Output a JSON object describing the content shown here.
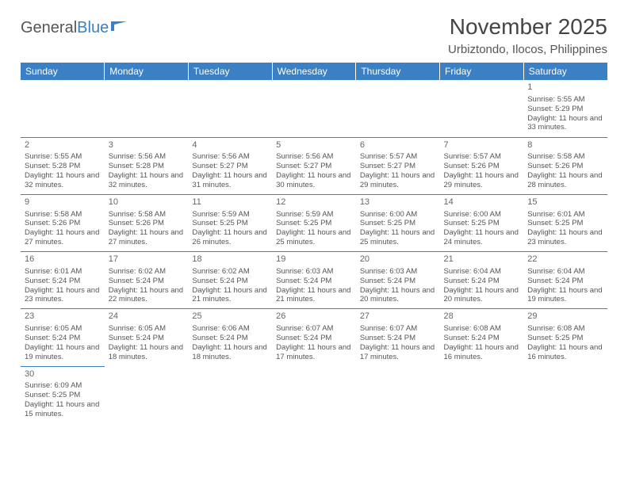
{
  "logo": {
    "text1": "General",
    "text2": "Blue"
  },
  "title": "November 2025",
  "location": "Urbiztondo, Ilocos, Philippines",
  "colors": {
    "header_bg": "#3b7fc4",
    "header_fg": "#ffffff",
    "border": "#3b7fc4",
    "text": "#555555"
  },
  "weekdays": [
    "Sunday",
    "Monday",
    "Tuesday",
    "Wednesday",
    "Thursday",
    "Friday",
    "Saturday"
  ],
  "weeks": [
    [
      {
        "n": "",
        "sr": "",
        "ss": "",
        "dl": ""
      },
      {
        "n": "",
        "sr": "",
        "ss": "",
        "dl": ""
      },
      {
        "n": "",
        "sr": "",
        "ss": "",
        "dl": ""
      },
      {
        "n": "",
        "sr": "",
        "ss": "",
        "dl": ""
      },
      {
        "n": "",
        "sr": "",
        "ss": "",
        "dl": ""
      },
      {
        "n": "",
        "sr": "",
        "ss": "",
        "dl": ""
      },
      {
        "n": "1",
        "sr": "Sunrise: 5:55 AM",
        "ss": "Sunset: 5:29 PM",
        "dl": "Daylight: 11 hours and 33 minutes."
      }
    ],
    [
      {
        "n": "2",
        "sr": "Sunrise: 5:55 AM",
        "ss": "Sunset: 5:28 PM",
        "dl": "Daylight: 11 hours and 32 minutes."
      },
      {
        "n": "3",
        "sr": "Sunrise: 5:56 AM",
        "ss": "Sunset: 5:28 PM",
        "dl": "Daylight: 11 hours and 32 minutes."
      },
      {
        "n": "4",
        "sr": "Sunrise: 5:56 AM",
        "ss": "Sunset: 5:27 PM",
        "dl": "Daylight: 11 hours and 31 minutes."
      },
      {
        "n": "5",
        "sr": "Sunrise: 5:56 AM",
        "ss": "Sunset: 5:27 PM",
        "dl": "Daylight: 11 hours and 30 minutes."
      },
      {
        "n": "6",
        "sr": "Sunrise: 5:57 AM",
        "ss": "Sunset: 5:27 PM",
        "dl": "Daylight: 11 hours and 29 minutes."
      },
      {
        "n": "7",
        "sr": "Sunrise: 5:57 AM",
        "ss": "Sunset: 5:26 PM",
        "dl": "Daylight: 11 hours and 29 minutes."
      },
      {
        "n": "8",
        "sr": "Sunrise: 5:58 AM",
        "ss": "Sunset: 5:26 PM",
        "dl": "Daylight: 11 hours and 28 minutes."
      }
    ],
    [
      {
        "n": "9",
        "sr": "Sunrise: 5:58 AM",
        "ss": "Sunset: 5:26 PM",
        "dl": "Daylight: 11 hours and 27 minutes."
      },
      {
        "n": "10",
        "sr": "Sunrise: 5:58 AM",
        "ss": "Sunset: 5:26 PM",
        "dl": "Daylight: 11 hours and 27 minutes."
      },
      {
        "n": "11",
        "sr": "Sunrise: 5:59 AM",
        "ss": "Sunset: 5:25 PM",
        "dl": "Daylight: 11 hours and 26 minutes."
      },
      {
        "n": "12",
        "sr": "Sunrise: 5:59 AM",
        "ss": "Sunset: 5:25 PM",
        "dl": "Daylight: 11 hours and 25 minutes."
      },
      {
        "n": "13",
        "sr": "Sunrise: 6:00 AM",
        "ss": "Sunset: 5:25 PM",
        "dl": "Daylight: 11 hours and 25 minutes."
      },
      {
        "n": "14",
        "sr": "Sunrise: 6:00 AM",
        "ss": "Sunset: 5:25 PM",
        "dl": "Daylight: 11 hours and 24 minutes."
      },
      {
        "n": "15",
        "sr": "Sunrise: 6:01 AM",
        "ss": "Sunset: 5:25 PM",
        "dl": "Daylight: 11 hours and 23 minutes."
      }
    ],
    [
      {
        "n": "16",
        "sr": "Sunrise: 6:01 AM",
        "ss": "Sunset: 5:24 PM",
        "dl": "Daylight: 11 hours and 23 minutes."
      },
      {
        "n": "17",
        "sr": "Sunrise: 6:02 AM",
        "ss": "Sunset: 5:24 PM",
        "dl": "Daylight: 11 hours and 22 minutes."
      },
      {
        "n": "18",
        "sr": "Sunrise: 6:02 AM",
        "ss": "Sunset: 5:24 PM",
        "dl": "Daylight: 11 hours and 21 minutes."
      },
      {
        "n": "19",
        "sr": "Sunrise: 6:03 AM",
        "ss": "Sunset: 5:24 PM",
        "dl": "Daylight: 11 hours and 21 minutes."
      },
      {
        "n": "20",
        "sr": "Sunrise: 6:03 AM",
        "ss": "Sunset: 5:24 PM",
        "dl": "Daylight: 11 hours and 20 minutes."
      },
      {
        "n": "21",
        "sr": "Sunrise: 6:04 AM",
        "ss": "Sunset: 5:24 PM",
        "dl": "Daylight: 11 hours and 20 minutes."
      },
      {
        "n": "22",
        "sr": "Sunrise: 6:04 AM",
        "ss": "Sunset: 5:24 PM",
        "dl": "Daylight: 11 hours and 19 minutes."
      }
    ],
    [
      {
        "n": "23",
        "sr": "Sunrise: 6:05 AM",
        "ss": "Sunset: 5:24 PM",
        "dl": "Daylight: 11 hours and 19 minutes."
      },
      {
        "n": "24",
        "sr": "Sunrise: 6:05 AM",
        "ss": "Sunset: 5:24 PM",
        "dl": "Daylight: 11 hours and 18 minutes."
      },
      {
        "n": "25",
        "sr": "Sunrise: 6:06 AM",
        "ss": "Sunset: 5:24 PM",
        "dl": "Daylight: 11 hours and 18 minutes."
      },
      {
        "n": "26",
        "sr": "Sunrise: 6:07 AM",
        "ss": "Sunset: 5:24 PM",
        "dl": "Daylight: 11 hours and 17 minutes."
      },
      {
        "n": "27",
        "sr": "Sunrise: 6:07 AM",
        "ss": "Sunset: 5:24 PM",
        "dl": "Daylight: 11 hours and 17 minutes."
      },
      {
        "n": "28",
        "sr": "Sunrise: 6:08 AM",
        "ss": "Sunset: 5:24 PM",
        "dl": "Daylight: 11 hours and 16 minutes."
      },
      {
        "n": "29",
        "sr": "Sunrise: 6:08 AM",
        "ss": "Sunset: 5:25 PM",
        "dl": "Daylight: 11 hours and 16 minutes."
      }
    ],
    [
      {
        "n": "30",
        "sr": "Sunrise: 6:09 AM",
        "ss": "Sunset: 5:25 PM",
        "dl": "Daylight: 11 hours and 15 minutes."
      },
      {
        "n": "",
        "sr": "",
        "ss": "",
        "dl": ""
      },
      {
        "n": "",
        "sr": "",
        "ss": "",
        "dl": ""
      },
      {
        "n": "",
        "sr": "",
        "ss": "",
        "dl": ""
      },
      {
        "n": "",
        "sr": "",
        "ss": "",
        "dl": ""
      },
      {
        "n": "",
        "sr": "",
        "ss": "",
        "dl": ""
      },
      {
        "n": "",
        "sr": "",
        "ss": "",
        "dl": ""
      }
    ]
  ]
}
